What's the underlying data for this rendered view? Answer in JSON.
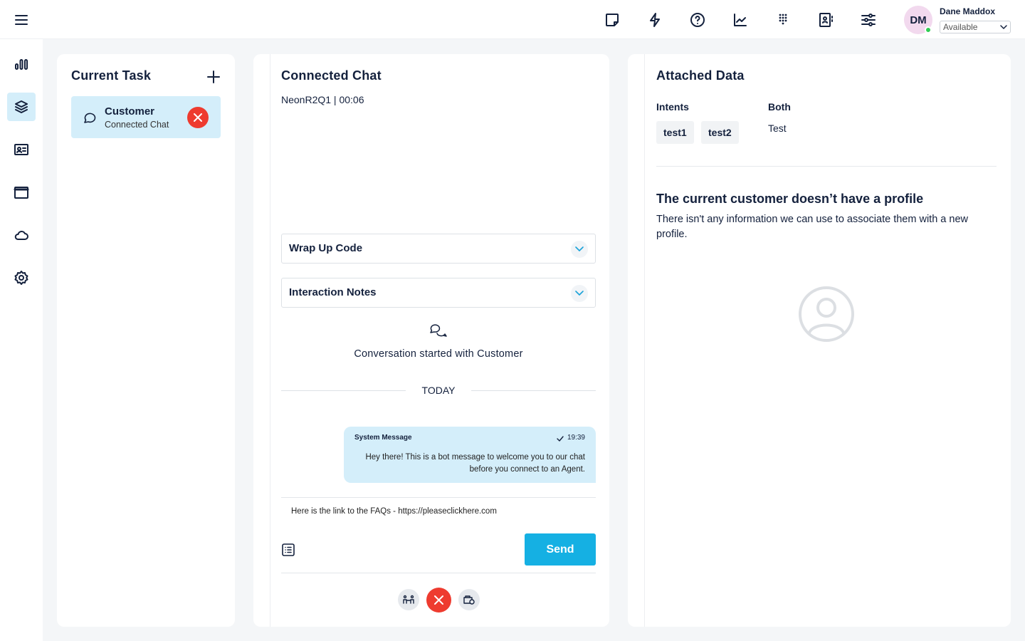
{
  "header": {
    "icons": [
      "menu-icon",
      "sticky-note-icon",
      "lightning-icon",
      "help-icon",
      "chart-line-icon",
      "dialpad-icon",
      "contact-book-icon",
      "sliders-icon"
    ],
    "user": {
      "initials": "DM",
      "name": "Dane Maddox",
      "status": "Available",
      "status_color": "#2ecc52"
    }
  },
  "rail": {
    "items": [
      {
        "icon": "bar-chart-icon"
      },
      {
        "icon": "layers-icon",
        "active": true
      },
      {
        "icon": "id-card-icon"
      },
      {
        "icon": "window-icon"
      },
      {
        "icon": "cloud-icon"
      },
      {
        "icon": "settings-icon"
      }
    ]
  },
  "current_task": {
    "title": "Current Task",
    "task": {
      "name": "Customer",
      "type": "Connected Chat"
    }
  },
  "chat": {
    "title": "Connected Chat",
    "subtitle": "NeonR2Q1 | 00:06",
    "wrap_up_label": "Wrap Up Code",
    "notes_label": "Interaction Notes",
    "started_text": "Conversation started with Customer",
    "day_divider": "TODAY",
    "message": {
      "sender": "System Message",
      "time": "19:39",
      "text": "Hey there! This is a bot message to welcome you to our chat before you connect to an Agent."
    },
    "input_value": "Here is the link to the FAQs - https://pleaseclickhere.com",
    "send_label": "Send"
  },
  "attached": {
    "title": "Attached Data",
    "intents_label": "Intents",
    "intents": [
      "test1",
      "test2"
    ],
    "both_label": "Both",
    "both_value": "Test",
    "profile_title": "The current customer doesn’t have a profile",
    "profile_text": "There isn't any information we can use to associate them with a new profile."
  },
  "colors": {
    "accent": "#15b0e3",
    "danger": "#ee3b2f",
    "highlight": "#d4eefa"
  }
}
